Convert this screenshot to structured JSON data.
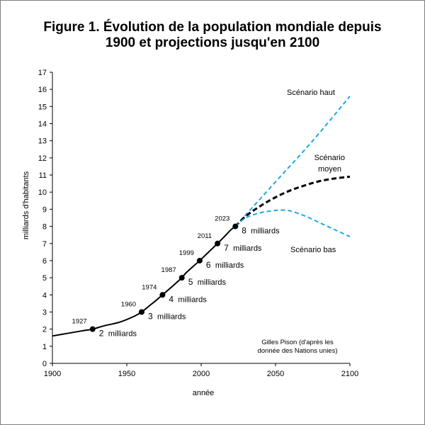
{
  "chart_data": {
    "type": "line",
    "title_line1": "Figure 1. Évolution de la population mondiale depuis",
    "title_line2": "1900 et projections jusqu'en 2100",
    "xlabel": "année",
    "ylabel": "milliards d'habitants",
    "xlim": [
      1900,
      2100
    ],
    "ylim": [
      0,
      17
    ],
    "x_ticks": [
      "1900",
      "1950",
      "2000",
      "2050",
      "2100"
    ],
    "y_ticks": [
      "0",
      "1",
      "2",
      "3",
      "4",
      "5",
      "6",
      "7",
      "8",
      "9",
      "10",
      "11",
      "12",
      "13",
      "14",
      "15",
      "16",
      "17"
    ],
    "grid": false,
    "colors": {
      "historical": "#000000",
      "scenario_moyen": "#000000",
      "scenario_haut": "#1fa8e0",
      "scenario_bas": "#1fa8e0"
    },
    "series": [
      {
        "key": "historical",
        "x": [
          1900,
          1910,
          1920,
          1927,
          1935,
          1945,
          1955,
          1960,
          1965,
          1970,
          1974,
          1980,
          1987,
          1990,
          1999,
          2005,
          2011,
          2015,
          2020,
          2023
        ],
        "values": [
          1.6,
          1.75,
          1.9,
          2.0,
          2.2,
          2.4,
          2.75,
          3.0,
          3.35,
          3.7,
          4.0,
          4.45,
          5.0,
          5.3,
          6.0,
          6.5,
          7.0,
          7.35,
          7.8,
          8.0
        ]
      },
      {
        "key": "scenario_haut",
        "x": [
          2023,
          2050,
          2075,
          2100
        ],
        "values": [
          8.0,
          10.6,
          13.0,
          15.6
        ]
      },
      {
        "key": "scenario_moyen",
        "x": [
          2023,
          2030,
          2040,
          2050,
          2060,
          2070,
          2080,
          2090,
          2100
        ],
        "values": [
          8.0,
          8.6,
          9.2,
          9.7,
          10.1,
          10.4,
          10.65,
          10.8,
          10.9
        ]
      },
      {
        "key": "scenario_bas",
        "x": [
          2023,
          2030,
          2040,
          2050,
          2055,
          2060,
          2070,
          2080,
          2090,
          2100
        ],
        "values": [
          8.0,
          8.5,
          8.8,
          8.93,
          8.95,
          8.9,
          8.6,
          8.2,
          7.8,
          7.4
        ]
      }
    ],
    "milestones": [
      {
        "year": 1927,
        "value": 2,
        "year_label": "1927",
        "number": "2",
        "unit": "milliards"
      },
      {
        "year": 1960,
        "value": 3,
        "year_label": "1960",
        "number": "3",
        "unit": "milliards"
      },
      {
        "year": 1974,
        "value": 4,
        "year_label": "1974",
        "number": "4",
        "unit": "milliards"
      },
      {
        "year": 1987,
        "value": 5,
        "year_label": "1987",
        "number": "5",
        "unit": "milliards"
      },
      {
        "year": 1999,
        "value": 6,
        "year_label": "1999",
        "number": "6",
        "unit": "milliards"
      },
      {
        "year": 2011,
        "value": 7,
        "year_label": "2011",
        "number": "7",
        "unit": "milliards"
      },
      {
        "year": 2023,
        "value": 8,
        "year_label": "2023",
        "number": "8",
        "unit": "milliards"
      }
    ],
    "annotations": {
      "scenario_haut": "Scénario haut",
      "scenario_moyen_line1": "Scénario",
      "scenario_moyen_line2": "moyen",
      "scenario_bas": "Scénario bas",
      "source_line1": "Gilles Pison (d'après les",
      "source_line2": "donnée des Nations unies)"
    }
  }
}
